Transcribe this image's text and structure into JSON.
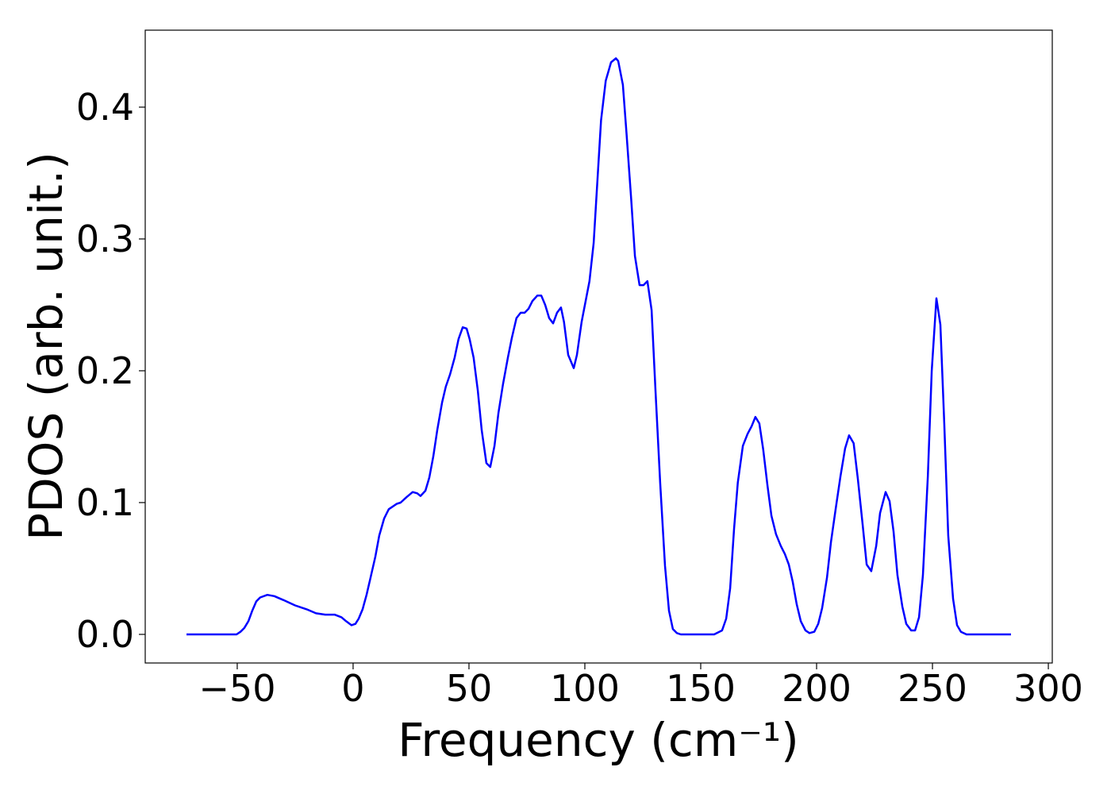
{
  "chart_data": {
    "type": "line",
    "xlabel": "Frequency (cm⁻¹)",
    "ylabel": "PDOS (arb. unit.)",
    "color": "#0000ff",
    "xlim": [
      -89.7,
      301.7
    ],
    "ylim": [
      -0.0217,
      0.4584
    ],
    "xticks": [
      {
        "value": -50,
        "label": "−50"
      },
      0,
      50,
      100,
      150,
      200,
      250,
      300
    ],
    "yticks": [
      {
        "value": 0,
        "label": "0.0"
      },
      0.1,
      0.2,
      0.3,
      0.4
    ],
    "x": [
      -71.9,
      -50.3,
      -48.6,
      -46.9,
      -45.2,
      -43.5,
      -41.8,
      -40.1,
      -37,
      -34,
      -30,
      -25,
      -20,
      -16,
      -12,
      -8,
      -5,
      -3,
      -0.7,
      1,
      2.4,
      4.1,
      5.8,
      7.5,
      9.6,
      11.3,
      13.4,
      15.4,
      18.8,
      20.5,
      23,
      25.7,
      27.7,
      29.1,
      31.2,
      32.9,
      34.6,
      36.3,
      38.4,
      40,
      41.8,
      43.8,
      45.5,
      47.3,
      49,
      50.3,
      52,
      53.8,
      55.5,
      57.5,
      59.2,
      61,
      62.7,
      64.7,
      66.8,
      68.5,
      70.5,
      72.3,
      74,
      75.7,
      77.4,
      79.5,
      81.2,
      82.9,
      84.6,
      86.3,
      88,
      89.7,
      91,
      92.8,
      95.2,
      96.6,
      98.6,
      102,
      103.8,
      107,
      109,
      111.3,
      113.4,
      114.4,
      116.4,
      118,
      120,
      121.6,
      123.6,
      125.3,
      127,
      128.8,
      130.5,
      132.5,
      134.6,
      136.3,
      138,
      139.7,
      141.4,
      155.8,
      159.2,
      161,
      162.7,
      164.4,
      166,
      168.2,
      170.2,
      172,
      173.6,
      175.3,
      177,
      178.8,
      180.5,
      182.5,
      184.6,
      186.3,
      188,
      189.7,
      191.4,
      193.2,
      195.2,
      196.9,
      199,
      200.7,
      202.4,
      204.5,
      206.2,
      208.2,
      210.3,
      212.3,
      214,
      216,
      217.8,
      219.9,
      221.6,
      223.6,
      225.7,
      227.4,
      229.8,
      231.5,
      233.2,
      234.9,
      237,
      238.7,
      240.8,
      242.5,
      244.2,
      245.9,
      248,
      249.7,
      251.7,
      253.4,
      255.1,
      256.8,
      258.9,
      260.6,
      262.3,
      264.7,
      283.9
    ],
    "values": [
      0,
      0,
      0.002,
      0.005,
      0.01,
      0.018,
      0.025,
      0.028,
      0.03,
      0.029,
      0.026,
      0.022,
      0.019,
      0.016,
      0.015,
      0.015,
      0.013,
      0.01,
      0.007,
      0.008,
      0.012,
      0.019,
      0.03,
      0.043,
      0.059,
      0.075,
      0.088,
      0.095,
      0.099,
      0.1,
      0.104,
      0.108,
      0.107,
      0.105,
      0.109,
      0.119,
      0.135,
      0.155,
      0.176,
      0.188,
      0.197,
      0.21,
      0.224,
      0.233,
      0.232,
      0.224,
      0.21,
      0.185,
      0.155,
      0.13,
      0.127,
      0.143,
      0.168,
      0.19,
      0.21,
      0.225,
      0.24,
      0.244,
      0.244,
      0.247,
      0.253,
      0.257,
      0.257,
      0.25,
      0.24,
      0.236,
      0.244,
      0.248,
      0.237,
      0.212,
      0.202,
      0.212,
      0.237,
      0.268,
      0.297,
      0.39,
      0.42,
      0.434,
      0.437,
      0.435,
      0.417,
      0.38,
      0.33,
      0.287,
      0.265,
      0.265,
      0.268,
      0.246,
      0.185,
      0.115,
      0.052,
      0.018,
      0.004,
      0.001,
      0,
      0,
      0.003,
      0.012,
      0.035,
      0.08,
      0.115,
      0.143,
      0.152,
      0.158,
      0.165,
      0.16,
      0.14,
      0.113,
      0.09,
      0.076,
      0.067,
      0.061,
      0.053,
      0.04,
      0.023,
      0.01,
      0.003,
      0.001,
      0.002,
      0.008,
      0.02,
      0.043,
      0.07,
      0.095,
      0.12,
      0.141,
      0.151,
      0.145,
      0.118,
      0.083,
      0.053,
      0.048,
      0.067,
      0.092,
      0.108,
      0.101,
      0.078,
      0.045,
      0.021,
      0.008,
      0.003,
      0.003,
      0.013,
      0.045,
      0.12,
      0.2,
      0.255,
      0.235,
      0.16,
      0.075,
      0.027,
      0.007,
      0.002,
      0,
      0
    ]
  }
}
